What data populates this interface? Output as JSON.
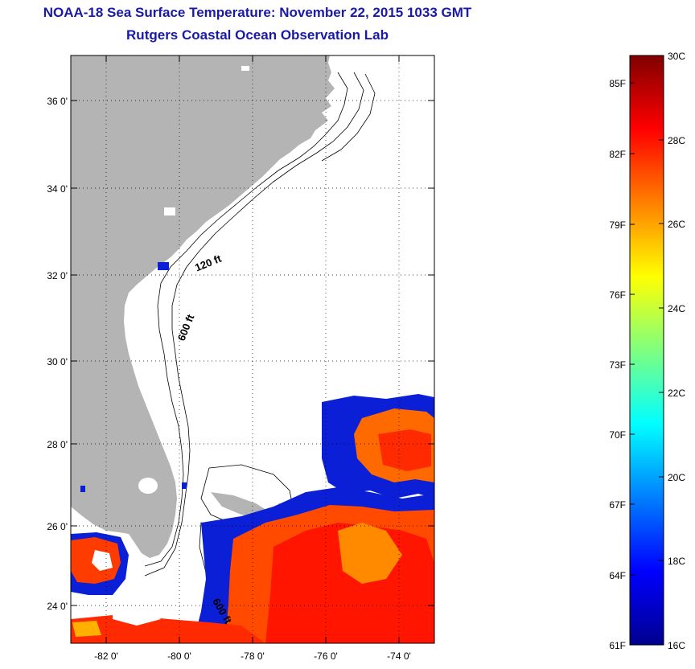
{
  "header": {
    "title": "NOAA-18 Sea Surface Temperature:  November 22, 2015 1033 GMT",
    "subtitle": "Rutgers Coastal Ocean Observation Lab"
  },
  "map": {
    "lat_labels": [
      "36 0'",
      "34 0'",
      "32 0'",
      "30 0'",
      "28 0'",
      "26 0'",
      "24 0'"
    ],
    "lon_labels": [
      "-82 0'",
      "-80 0'",
      "-78 0'",
      "-76 0'",
      "-74 0'"
    ],
    "contour_labels": [
      "120 ft",
      "600 ft",
      "600 ft"
    ],
    "land_color": "#b4b4b4",
    "no_data_color": "#ffffff"
  },
  "colorbar": {
    "fahrenheit_labels": [
      "85F",
      "82F",
      "79F",
      "76F",
      "73F",
      "70F",
      "67F",
      "64F",
      "61F"
    ],
    "celsius_labels": [
      "30C",
      "28C",
      "26C",
      "24C",
      "22C",
      "20C",
      "18C",
      "16C"
    ],
    "colormap": "jet"
  }
}
